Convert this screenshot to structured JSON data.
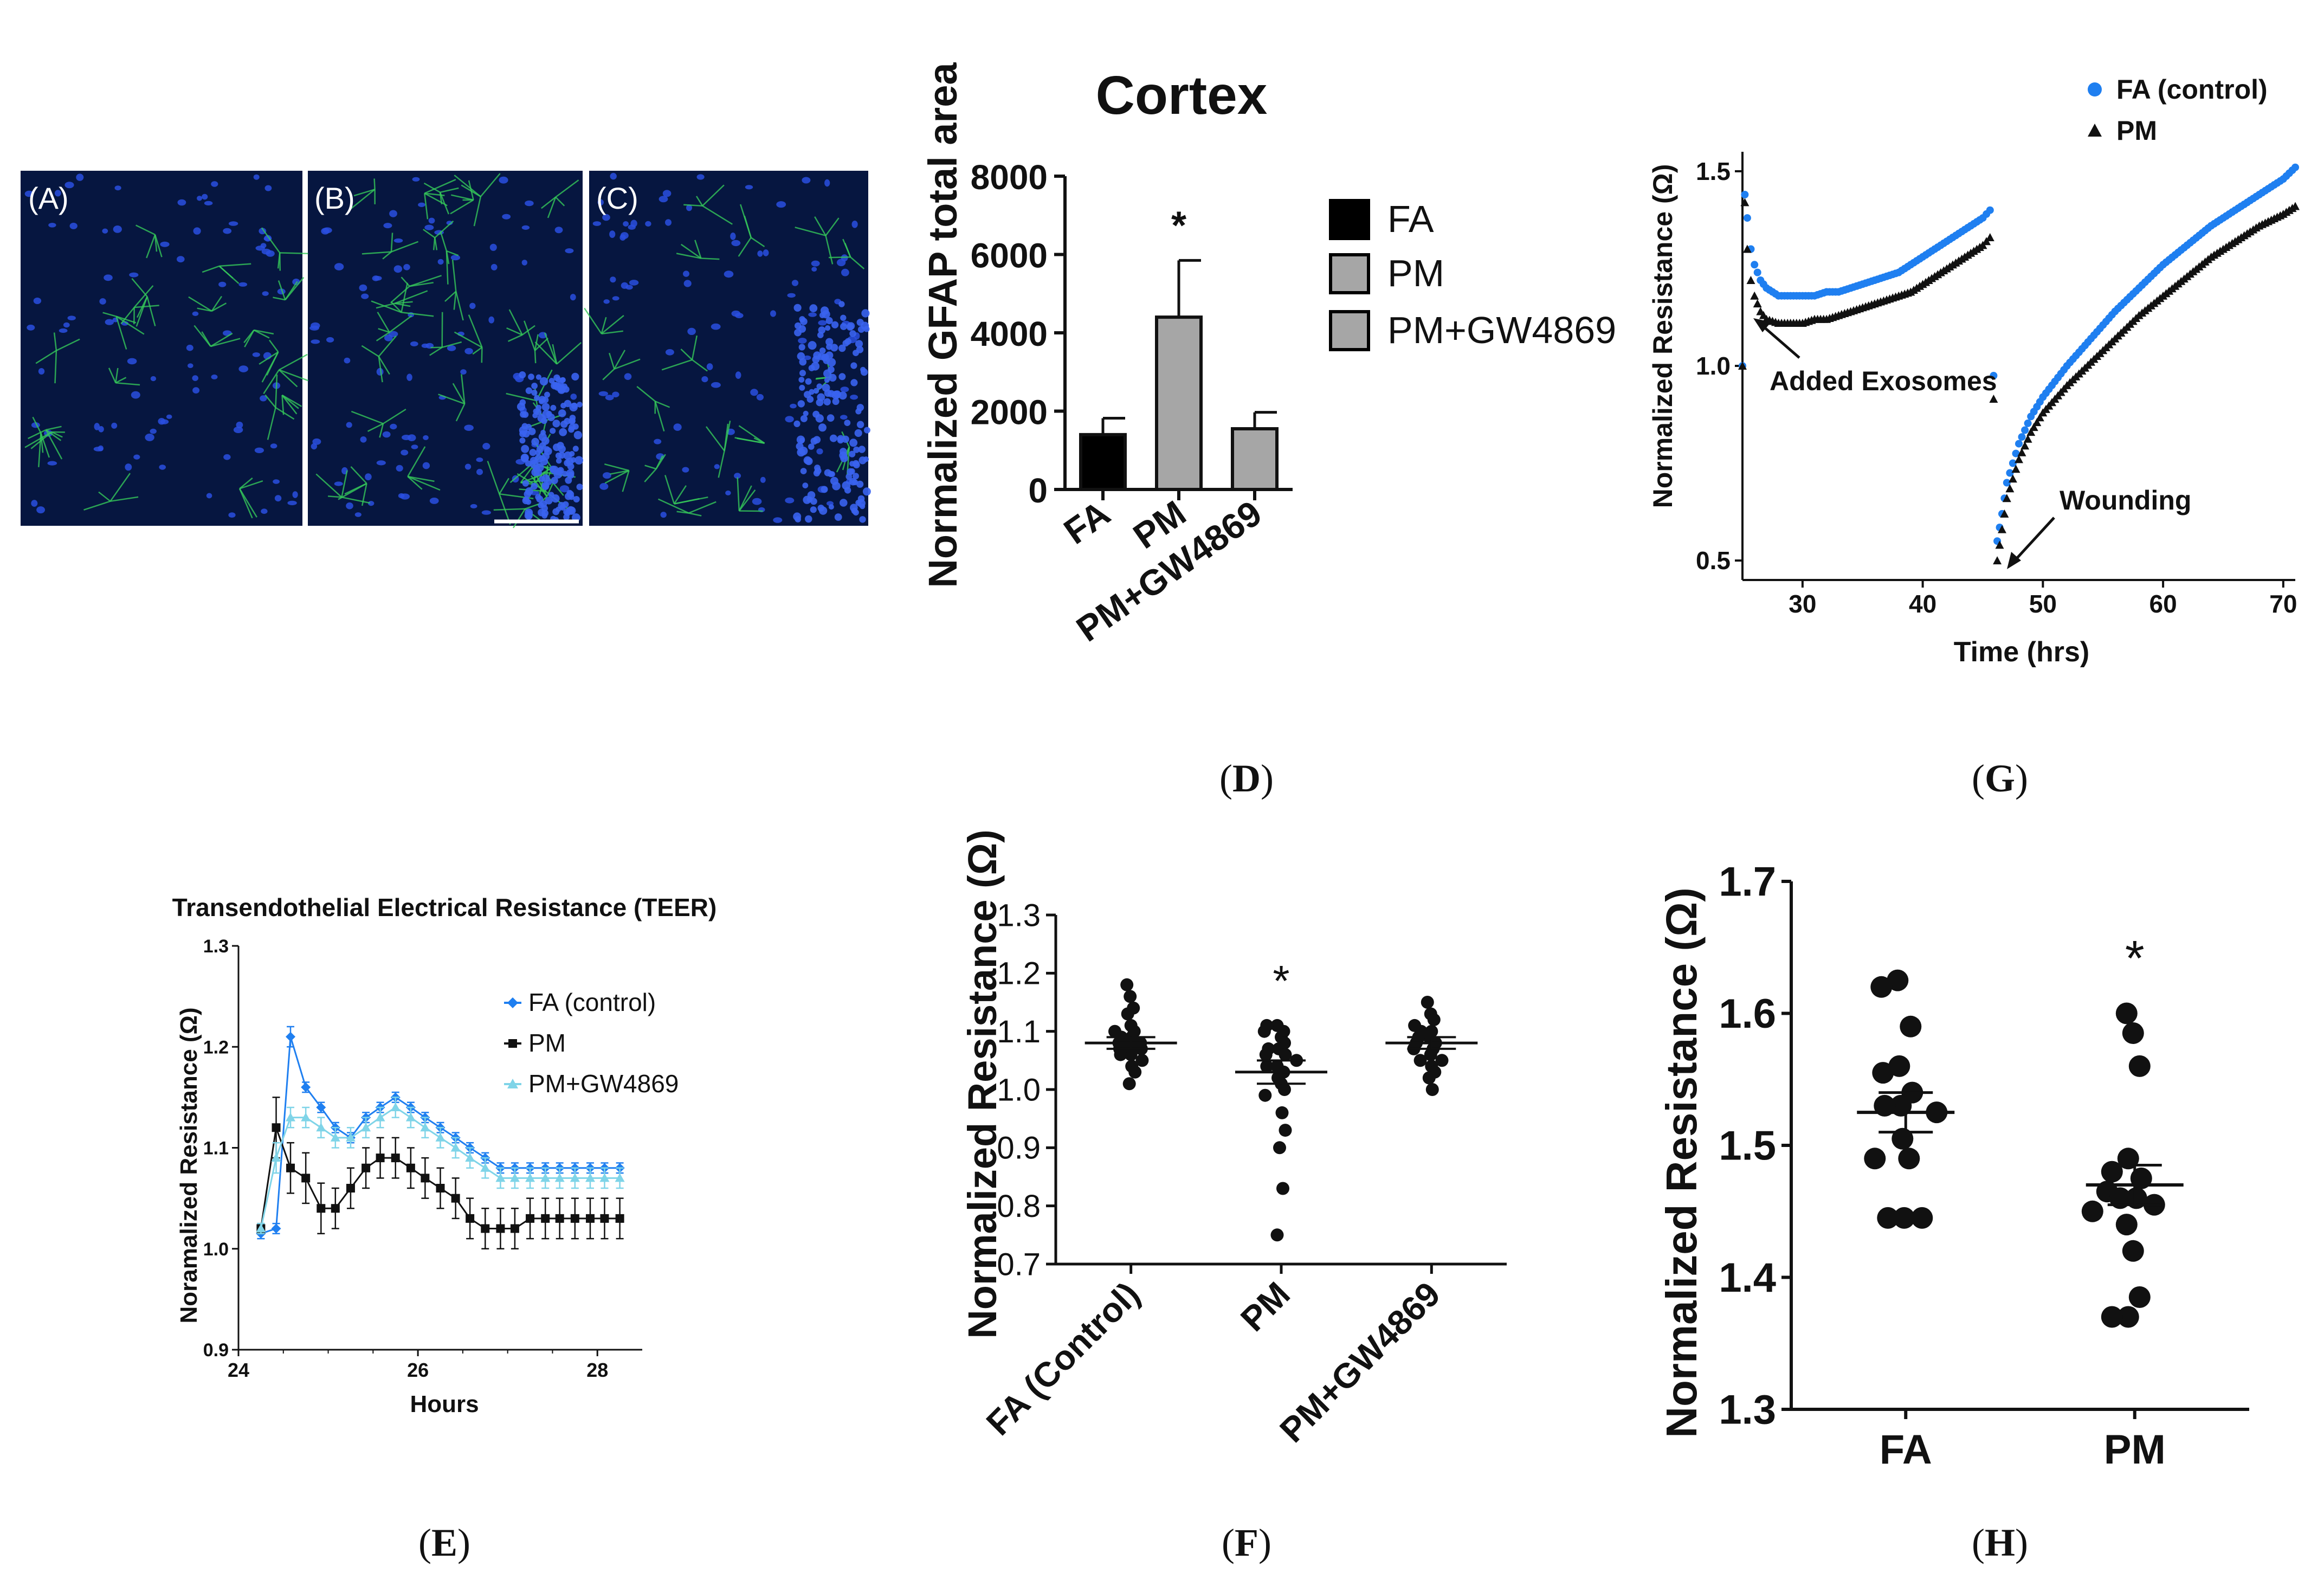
{
  "panels": {
    "micro": {
      "labels": [
        "(A)",
        "(B)",
        "(C)"
      ]
    },
    "D": {
      "caption_letter": "D",
      "title": "Cortex",
      "ylabel": "Normalized GFAP total area",
      "legend": [
        "FA",
        "PM",
        "PM+GW4869"
      ],
      "colors": {
        "FA": "#000000",
        "PM": "#a6a6a6",
        "PM+GW4869": "#a6a6a6"
      }
    },
    "G": {
      "caption_letter": "G",
      "ylabel": "Normalized Resistance (Ω)",
      "xlabel": "Time (hrs)",
      "annotations": [
        "Added Exosomes",
        "Wounding"
      ],
      "legend": [
        "FA (control)",
        "PM"
      ],
      "colors": {
        "FA (control)": "#1f7ff0",
        "PM": "#111111"
      }
    },
    "E": {
      "caption_letter": "E",
      "title": "Transendothelial Electrical Resistance (TEER)",
      "ylabel": "Noramalized Resistance (Ω)",
      "xlabel": "Hours",
      "legend": [
        "FA (control)",
        "PM",
        "PM+GW4869"
      ],
      "colors": {
        "FA (control)": "#1f7ff0",
        "PM": "#111111",
        "PM+GW4869": "#7fd4e8"
      }
    },
    "F": {
      "caption_letter": "F",
      "ylabel": "Normalized Resistance (Ω)",
      "star": "*"
    },
    "H": {
      "caption_letter": "H",
      "ylabel": "Normalized Resistance (Ω)",
      "star": "*"
    }
  },
  "chart_data": [
    {
      "panel": "D",
      "type": "bar",
      "title": "Cortex",
      "ylabel": "Normalized GFAP total area",
      "categories": [
        "FA",
        "PM",
        "PM+GW4869"
      ],
      "values": [
        1400,
        4400,
        1550
      ],
      "errors": [
        420,
        1450,
        420
      ],
      "significance": [
        "",
        "*",
        ""
      ],
      "ylim": [
        0,
        8000
      ],
      "yticks": [
        0,
        2000,
        4000,
        6000,
        8000
      ]
    },
    {
      "panel": "G",
      "type": "scatter",
      "xlabel": "Time (hrs)",
      "ylabel": "Normalized Resistance (Ω)",
      "xlim": [
        25,
        71
      ],
      "ylim": [
        0.45,
        1.55
      ],
      "xticks": [
        30,
        40,
        50,
        60,
        70
      ],
      "yticks": [
        0.5,
        1.0,
        1.5
      ],
      "ytick_labels": [
        "0.5",
        "1.0",
        "1.5"
      ],
      "series": [
        {
          "name": "FA (control)",
          "x": [
            25.0,
            25.2,
            25.4,
            25.7,
            26,
            26.5,
            27,
            28,
            29,
            30,
            31,
            32,
            33,
            34,
            35,
            36,
            37,
            38,
            39,
            40,
            41,
            42,
            43,
            44,
            45,
            45.6,
            46.2,
            46.6,
            47,
            48,
            49,
            50,
            52,
            54,
            56,
            58,
            60,
            62,
            64,
            66,
            68,
            70,
            71
          ],
          "y": [
            1.0,
            1.44,
            1.38,
            1.3,
            1.26,
            1.22,
            1.2,
            1.18,
            1.18,
            1.18,
            1.18,
            1.19,
            1.19,
            1.2,
            1.21,
            1.22,
            1.23,
            1.24,
            1.26,
            1.28,
            1.3,
            1.32,
            1.34,
            1.36,
            1.38,
            1.4,
            0.55,
            0.62,
            0.7,
            0.8,
            0.87,
            0.92,
            1.0,
            1.07,
            1.14,
            1.2,
            1.26,
            1.31,
            1.36,
            1.4,
            1.44,
            1.48,
            1.51
          ]
        },
        {
          "name": "PM",
          "x": [
            25.0,
            25.2,
            25.4,
            25.7,
            26,
            26.5,
            27,
            28,
            29,
            30,
            31,
            32,
            33,
            34,
            35,
            36,
            37,
            38,
            39,
            40,
            41,
            42,
            43,
            44,
            45,
            45.6,
            46.2,
            46.6,
            47,
            48,
            49,
            50,
            52,
            54,
            56,
            58,
            60,
            62,
            64,
            66,
            68,
            70,
            71
          ],
          "y": [
            1.0,
            1.42,
            1.3,
            1.22,
            1.18,
            1.14,
            1.12,
            1.11,
            1.11,
            1.11,
            1.12,
            1.12,
            1.13,
            1.14,
            1.15,
            1.16,
            1.17,
            1.18,
            1.19,
            1.21,
            1.23,
            1.25,
            1.27,
            1.29,
            1.31,
            1.33,
            0.5,
            0.58,
            0.66,
            0.76,
            0.83,
            0.88,
            0.95,
            1.01,
            1.07,
            1.13,
            1.18,
            1.23,
            1.28,
            1.32,
            1.36,
            1.39,
            1.41
          ]
        }
      ]
    },
    {
      "panel": "E",
      "type": "line",
      "title": "Transendothelial Electrical Resistance (TEER)",
      "xlabel": "Hours",
      "ylabel": "Noramalized Resistance (Ω)",
      "xlim": [
        24,
        28.5
      ],
      "ylim": [
        0.9,
        1.3
      ],
      "xticks": [
        24,
        26,
        28
      ],
      "yticks": [
        0.9,
        1.0,
        1.1,
        1.2,
        1.3
      ],
      "ytick_labels": [
        "0.9",
        "1.0",
        "1.1",
        "1.2",
        "1.3"
      ],
      "x": [
        24.25,
        24.42,
        24.58,
        24.75,
        24.92,
        25.08,
        25.25,
        25.42,
        25.58,
        25.75,
        25.92,
        26.08,
        26.25,
        26.42,
        26.58,
        26.75,
        26.92,
        27.08,
        27.25,
        27.42,
        27.58,
        27.75,
        27.92,
        28.08,
        28.25
      ],
      "series": [
        {
          "name": "FA (control)",
          "values": [
            1.015,
            1.02,
            1.21,
            1.16,
            1.14,
            1.12,
            1.11,
            1.13,
            1.14,
            1.15,
            1.14,
            1.13,
            1.12,
            1.11,
            1.1,
            1.09,
            1.08,
            1.08,
            1.08,
            1.08,
            1.08,
            1.08,
            1.08,
            1.08,
            1.08
          ],
          "errors": [
            0.005,
            0.005,
            0.01,
            0.005,
            0.005,
            0.005,
            0.005,
            0.005,
            0.005,
            0.005,
            0.005,
            0.005,
            0.005,
            0.005,
            0.005,
            0.005,
            0.005,
            0.005,
            0.005,
            0.005,
            0.005,
            0.005,
            0.005,
            0.005,
            0.005
          ]
        },
        {
          "name": "PM",
          "values": [
            1.02,
            1.12,
            1.08,
            1.07,
            1.04,
            1.04,
            1.06,
            1.08,
            1.09,
            1.09,
            1.08,
            1.07,
            1.06,
            1.05,
            1.03,
            1.02,
            1.02,
            1.02,
            1.03,
            1.03,
            1.03,
            1.03,
            1.03,
            1.03,
            1.03
          ],
          "errors": [
            0.005,
            0.03,
            0.025,
            0.025,
            0.025,
            0.02,
            0.02,
            0.02,
            0.02,
            0.02,
            0.02,
            0.02,
            0.02,
            0.02,
            0.02,
            0.02,
            0.02,
            0.02,
            0.02,
            0.02,
            0.02,
            0.02,
            0.02,
            0.02,
            0.02
          ]
        },
        {
          "name": "PM+GW4869",
          "values": [
            1.02,
            1.09,
            1.13,
            1.13,
            1.12,
            1.11,
            1.11,
            1.12,
            1.13,
            1.14,
            1.13,
            1.12,
            1.11,
            1.1,
            1.09,
            1.08,
            1.07,
            1.07,
            1.07,
            1.07,
            1.07,
            1.07,
            1.07,
            1.07,
            1.07
          ],
          "errors": [
            0.005,
            0.015,
            0.01,
            0.01,
            0.01,
            0.01,
            0.01,
            0.01,
            0.01,
            0.01,
            0.01,
            0.01,
            0.01,
            0.01,
            0.01,
            0.01,
            0.01,
            0.01,
            0.01,
            0.01,
            0.01,
            0.01,
            0.01,
            0.01,
            0.01
          ]
        }
      ]
    },
    {
      "panel": "F",
      "type": "scatter",
      "ylabel": "Normalized Resistance (Ω)",
      "categories": [
        "FA (Control)",
        "PM",
        "PM+GW4869"
      ],
      "ylim": [
        0.7,
        1.3
      ],
      "yticks": [
        0.7,
        0.8,
        0.9,
        1.0,
        1.1,
        1.2,
        1.3
      ],
      "ytick_labels": [
        "0.7",
        "0.8",
        "0.9",
        "1.0",
        "1.1",
        "1.2",
        "1.3"
      ],
      "series": [
        {
          "name": "FA (Control)",
          "mean": 1.08,
          "sem": 0.01,
          "values": [
            1.18,
            1.16,
            1.14,
            1.13,
            1.11,
            1.1,
            1.1,
            1.09,
            1.09,
            1.08,
            1.08,
            1.08,
            1.07,
            1.07,
            1.07,
            1.06,
            1.06,
            1.05,
            1.04,
            1.03,
            1.01
          ]
        },
        {
          "name": "PM",
          "mean": 1.03,
          "sem": 0.02,
          "values": [
            1.11,
            1.11,
            1.1,
            1.1,
            1.09,
            1.08,
            1.07,
            1.07,
            1.06,
            1.06,
            1.05,
            1.04,
            1.04,
            1.03,
            1.02,
            1.01,
            1.0,
            0.99,
            0.96,
            0.93,
            0.9,
            0.83,
            0.75
          ]
        },
        {
          "name": "PM+GW4869",
          "mean": 1.08,
          "sem": 0.01,
          "values": [
            1.15,
            1.13,
            1.12,
            1.11,
            1.1,
            1.1,
            1.09,
            1.09,
            1.08,
            1.08,
            1.07,
            1.07,
            1.06,
            1.05,
            1.05,
            1.04,
            1.03,
            1.02,
            1.0
          ]
        }
      ],
      "significance": [
        "",
        "*",
        ""
      ]
    },
    {
      "panel": "H",
      "type": "scatter",
      "ylabel": "Normalized Resistance (Ω)",
      "categories": [
        "FA",
        "PM"
      ],
      "ylim": [
        1.3,
        1.7
      ],
      "yticks": [
        1.3,
        1.4,
        1.5,
        1.6,
        1.7
      ],
      "ytick_labels": [
        "1.3",
        "1.4",
        "1.5",
        "1.6",
        "1.7"
      ],
      "series": [
        {
          "name": "FA",
          "mean": 1.525,
          "sem": 0.015,
          "values": [
            1.625,
            1.62,
            1.59,
            1.56,
            1.555,
            1.54,
            1.53,
            1.53,
            1.525,
            1.505,
            1.49,
            1.49,
            1.445,
            1.445,
            1.445
          ]
        },
        {
          "name": "PM",
          "mean": 1.47,
          "sem": 0.015,
          "values": [
            1.6,
            1.585,
            1.56,
            1.49,
            1.48,
            1.475,
            1.465,
            1.46,
            1.46,
            1.455,
            1.45,
            1.44,
            1.42,
            1.385,
            1.37,
            1.37
          ]
        }
      ],
      "significance": [
        "",
        "*"
      ]
    }
  ]
}
